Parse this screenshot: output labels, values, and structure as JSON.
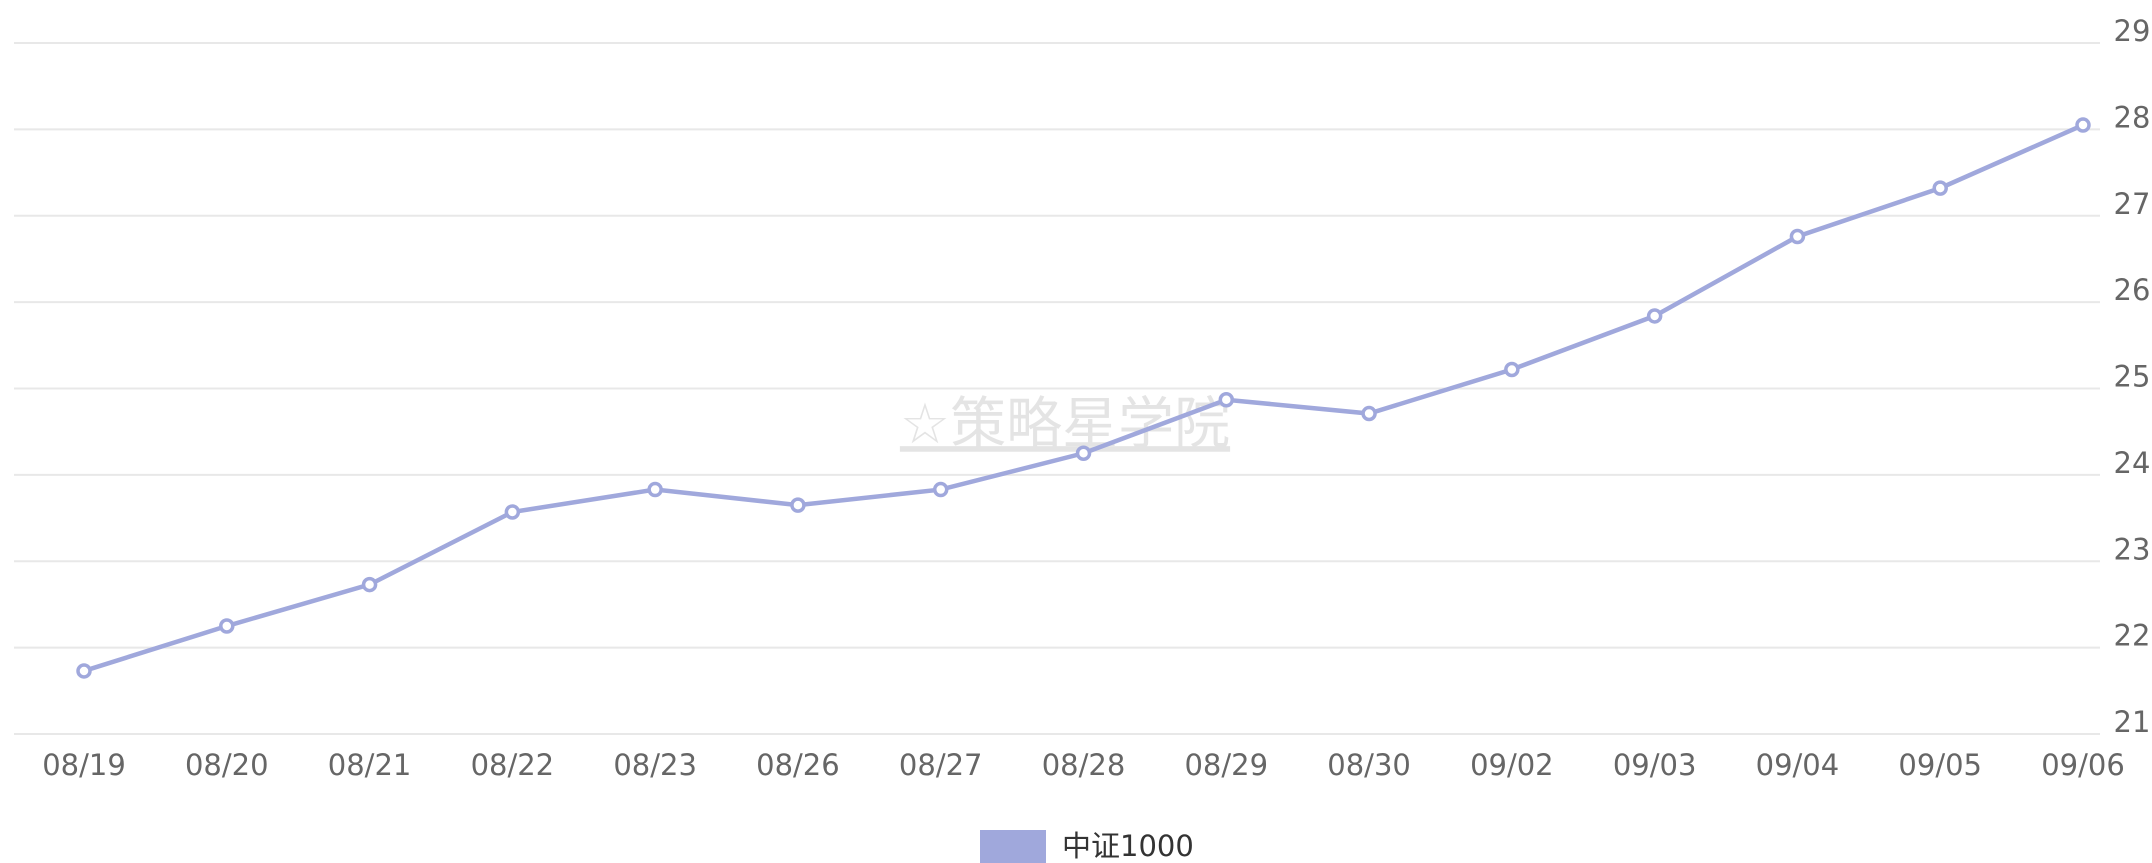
{
  "chart_data": {
    "type": "line",
    "categories": [
      "08/19",
      "08/20",
      "08/21",
      "08/22",
      "08/23",
      "08/26",
      "08/27",
      "08/28",
      "08/29",
      "08/30",
      "09/02",
      "09/03",
      "09/04",
      "09/05",
      "09/06"
    ],
    "series": [
      {
        "name": "中证1000",
        "color": "#a0a8dc",
        "values": [
          21.73,
          22.25,
          22.73,
          23.57,
          23.83,
          23.65,
          23.83,
          24.25,
          24.87,
          24.71,
          25.22,
          25.84,
          26.76,
          27.32,
          28.05
        ]
      }
    ],
    "ylim": [
      21,
      29
    ],
    "yticks": [
      21,
      22,
      23,
      24,
      25,
      26,
      27,
      28,
      29
    ],
    "grid": true,
    "annotation": "☆策略星学院",
    "legend": "bottom"
  }
}
